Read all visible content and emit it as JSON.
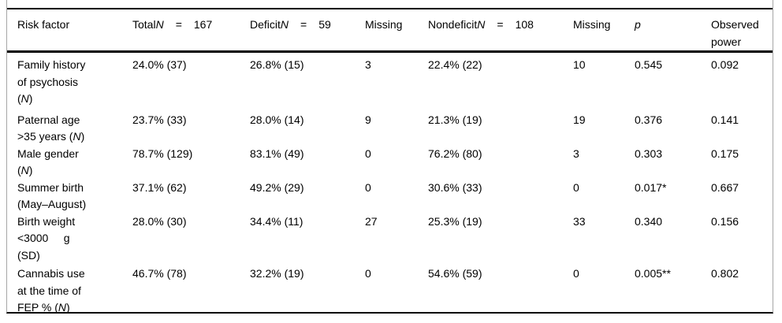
{
  "table": {
    "header": {
      "risk_factor": "Risk factor",
      "total": {
        "prefix": "Total",
        "n": "N",
        "eq": "=",
        "num": "167"
      },
      "deficit": {
        "prefix": "Deficit",
        "n": "N",
        "eq": "=",
        "num": "59"
      },
      "missing_deficit_label": "Missing",
      "nondeficit": {
        "prefix": "Nondeficit",
        "n": "N",
        "eq": "=",
        "num": "108"
      },
      "missing_nondeficit_label": "Missing",
      "p_label": "p",
      "observed_power_label": "Observed power"
    },
    "rows": [
      {
        "label_pre": "Family history of psychosis (",
        "label_n": "N",
        "label_post": ")",
        "total": "24.0% (37)",
        "deficit": "26.8% (15)",
        "missing_deficit": "3",
        "nondeficit": "22.4% (22)",
        "missing_nondeficit": "10",
        "p": "0.545",
        "power": "0.092"
      },
      {
        "label_pre": "Paternal age >35 years (",
        "label_n": "N",
        "label_post": ")",
        "total": "23.7% (33)",
        "deficit": "28.0% (14)",
        "missing_deficit": "9",
        "nondeficit": "21.3% (19)",
        "missing_nondeficit": "19",
        "p": "0.376",
        "power": "0.141"
      },
      {
        "label_pre": "Male gender (",
        "label_n": "N",
        "label_post": ")",
        "total": "78.7% (129)",
        "deficit": "83.1% (49)",
        "missing_deficit": "0",
        "nondeficit": "76.2% (80)",
        "missing_nondeficit": "3",
        "p": "0.303",
        "power": "0.175"
      },
      {
        "label_pre": "Summer birth (May–August)",
        "label_n": "",
        "label_post": "",
        "total": "37.1% (62)",
        "deficit": "49.2% (29)",
        "missing_deficit": "0",
        "nondeficit": "30.6% (33)",
        "missing_nondeficit": "0",
        "p": "0.017*",
        "power": "0.667"
      },
      {
        "label_pre": "Birth weight <3000     g (SD)",
        "label_n": "",
        "label_post": "",
        "total": "28.0% (30)",
        "deficit": "34.4% (11)",
        "missing_deficit": "27",
        "nondeficit": "25.3% (19)",
        "missing_nondeficit": "33",
        "p": "0.340",
        "power": "0.156"
      },
      {
        "label_pre": "Cannabis use at the time of FEP % (",
        "label_n": "N",
        "label_post": ")",
        "total": "46.7% (78)",
        "deficit": "32.2% (19)",
        "missing_deficit": "0",
        "nondeficit": "54.6% (59)",
        "missing_nondeficit": "0",
        "p": "0.005**",
        "power": "0.802"
      }
    ]
  },
  "colors": {
    "rule": "#000000",
    "frame_edge": "#a6a6a6",
    "text": "#000000",
    "background": "#ffffff"
  }
}
